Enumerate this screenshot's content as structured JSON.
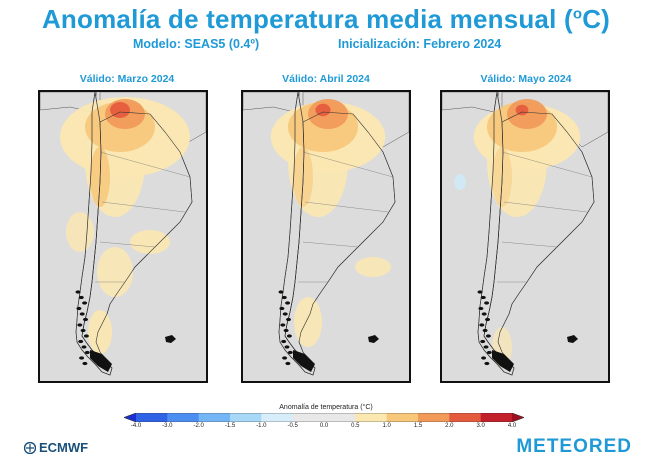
{
  "header": {
    "title": "Anomalía de temperatura media mensual (",
    "title_sup": "o",
    "title_end": "C)",
    "model": "Modelo: SEAS5 (0.4º)",
    "init": "Inicialización: Febrero 2024"
  },
  "panels": [
    {
      "label": "Válido: Marzo 2024",
      "intensity": 1.0
    },
    {
      "label": "Válido: Abril 2024",
      "intensity": 0.7
    },
    {
      "label": "Válido: Mayo 2024",
      "intensity": 0.55
    }
  ],
  "colorbar": {
    "title": "Anomalía de temperatura (°C)",
    "ticks": [
      "-4.0",
      "-3.0",
      "-2.0",
      "-1.5",
      "-1.0",
      "-0.5",
      "0.0",
      "0.5",
      "1.0",
      "1.5",
      "2.0",
      "3.0",
      "4.0"
    ],
    "colors": [
      "#1a2fd0",
      "#2f63e6",
      "#4c8ef0",
      "#74b6f5",
      "#a8d8f8",
      "#d7eefa",
      "#e8e8e8",
      "#e8e8e8",
      "#fbe7b0",
      "#f7c77a",
      "#f19a5a",
      "#e45a3c",
      "#c2202a",
      "#9e1020"
    ]
  },
  "footer": {
    "left_logo": "ECMWF",
    "right_logo": "METEORED"
  },
  "colors": {
    "accent": "#1f9ad6",
    "land_neutral": "#dcdcdc",
    "warm1": "#fbe7b0",
    "warm2": "#f7c77a",
    "warm3": "#f19a5a",
    "warm4": "#e45a3c"
  }
}
